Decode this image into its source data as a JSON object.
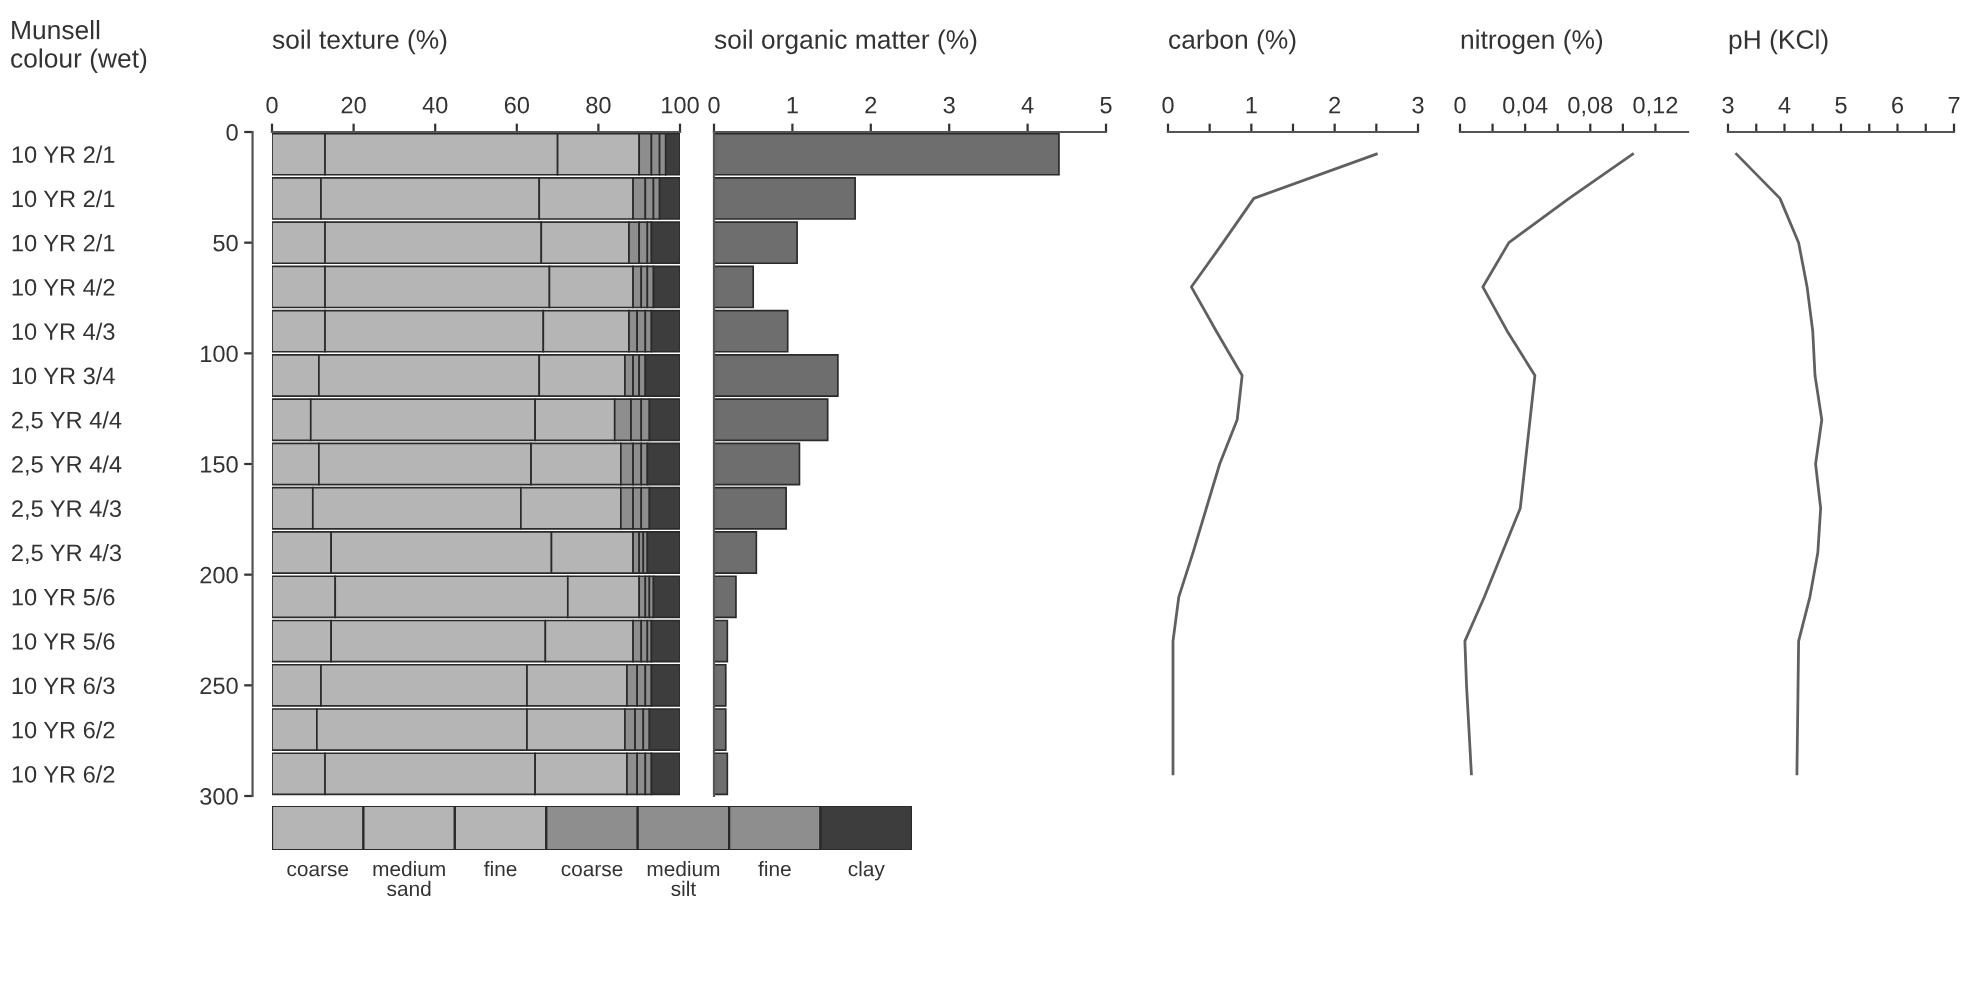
{
  "chart_data": [
    {
      "type": "bar",
      "orientation": "horizontal",
      "stacked": true,
      "title": "soil texture (%)",
      "ylabel": "Munsell colour (wet)",
      "categories": [
        "10 YR 2/1",
        "10 YR 2/1",
        "10 YR 2/1",
        "10 YR 4/2",
        "10 YR 4/3",
        "10 YR 3/4",
        "2,5 YR 4/4",
        "2,5 YR 4/4",
        "2,5 YR 4/3",
        "2,5 YR 4/3",
        "10 YR 5/6",
        "10 YR 5/6",
        "10 YR 6/3",
        "10 YR 6/2",
        "10 YR 6/2"
      ],
      "series": [
        {
          "name": "coarse",
          "color": "#b5b5b5",
          "values": [
            13,
            12,
            13,
            13,
            13,
            11.5,
            9.5,
            11.5,
            10,
            14.5,
            15.5,
            14.5,
            12,
            11,
            13
          ]
        },
        {
          "name": "medium",
          "color": "#b5b5b5",
          "values": [
            57,
            53.5,
            53,
            55,
            53.5,
            54,
            55,
            52,
            51,
            54,
            57,
            52.5,
            50.5,
            51.5,
            51.5
          ]
        },
        {
          "name": "fine",
          "color": "#b5b5b5",
          "values": [
            20,
            23,
            21.5,
            20.5,
            21,
            21,
            19.5,
            22,
            24.5,
            20,
            17.5,
            21.5,
            24.5,
            24,
            22.5
          ]
        },
        {
          "name": "coarse",
          "color": "#8e8e8e",
          "values": [
            3,
            3,
            2.5,
            2,
            2,
            2,
            4,
            3,
            3,
            1.5,
            1.5,
            2,
            2.5,
            2.5,
            2.5
          ]
        },
        {
          "name": "medium",
          "color": "#8e8e8e",
          "values": [
            2,
            2,
            2,
            1.5,
            2,
            1.5,
            2.5,
            2,
            2,
            1,
            1,
            1.5,
            2,
            2,
            2
          ]
        },
        {
          "name": "fine",
          "color": "#8e8e8e",
          "values": [
            1.5,
            1.5,
            1,
            1.5,
            1.5,
            1.5,
            2,
            1.5,
            2,
            1,
            1,
            1,
            1.5,
            1.5,
            1.5
          ]
        },
        {
          "name": "clay",
          "color": "#3d3d3d",
          "values": [
            3.5,
            5,
            7,
            6.5,
            7,
            8.5,
            7.5,
            8,
            7.5,
            8,
            6.5,
            7,
            7,
            7.5,
            7
          ]
        }
      ],
      "xlim": [
        0,
        100
      ],
      "xticks": [
        0,
        20,
        40,
        60,
        80,
        100
      ],
      "y2lim": [
        300,
        0
      ],
      "y2ticks": [
        0,
        50,
        100,
        150,
        200,
        250,
        300
      ],
      "legend": "bottom",
      "annotations": [
        "sand",
        "silt"
      ]
    },
    {
      "type": "bar",
      "orientation": "horizontal",
      "title": "soil organic matter (%)",
      "categories": [
        null,
        null,
        null,
        null,
        null,
        null,
        null,
        null,
        null,
        null,
        null,
        null,
        null,
        null,
        null
      ],
      "values": [
        4.4,
        1.8,
        1.06,
        0.5,
        0.94,
        1.58,
        1.45,
        1.09,
        0.92,
        0.54,
        0.28,
        0.17,
        0.15,
        0.15,
        0.17
      ],
      "color": "#6e6e6e",
      "xlim": [
        0,
        5
      ],
      "xticks": [
        0,
        1,
        2,
        3,
        4,
        5
      ],
      "tick_labels": "x"
    },
    {
      "type": "line",
      "orientation": "horizontal",
      "title": "carbon (%)",
      "categories": [
        null,
        null,
        null,
        null,
        null,
        null,
        null,
        null,
        null,
        null,
        null,
        null,
        null,
        null,
        null
      ],
      "series": [
        {
          "color": "#606060",
          "values": [
            2.5,
            1.03,
            0.66,
            0.28,
            0.58,
            0.89,
            0.83,
            0.62,
            0.46,
            0.3,
            0.13,
            0.06,
            0.06,
            0.06,
            0.06
          ]
        }
      ],
      "xlim": [
        0,
        3
      ],
      "xticks": [
        {
          "value": 0,
          "label": "0"
        },
        {
          "value": 0.5,
          "label": null
        },
        {
          "value": 1,
          "label": "1"
        },
        {
          "value": 1.5,
          "label": null
        },
        {
          "value": 2,
          "label": "2"
        },
        {
          "value": 2.5,
          "label": null
        },
        {
          "value": 3,
          "label": "3"
        }
      ],
      "tick_labels": "x"
    },
    {
      "type": "line",
      "orientation": "horizontal",
      "title": "nitrogen (%)",
      "categories": [
        null,
        null,
        null,
        null,
        null,
        null,
        null,
        null,
        null,
        null,
        null,
        null,
        null,
        null,
        null
      ],
      "series": [
        {
          "color": "#606060",
          "values": [
            0.106,
            0.067,
            0.03,
            0.014,
            0.029,
            0.046,
            0.043,
            0.04,
            0.037,
            0.026,
            0.015,
            0.003,
            0.004,
            0.0055,
            0.007
          ]
        }
      ],
      "xlim": [
        0,
        0.14
      ],
      "xticks": [
        {
          "value": 0,
          "label": "0"
        },
        {
          "value": 0.02,
          "label": null
        },
        {
          "value": 0.04,
          "label": "0,04"
        },
        {
          "value": 0.06,
          "label": null
        },
        {
          "value": 0.08,
          "label": "0,08"
        },
        {
          "value": 0.1,
          "label": null
        },
        {
          "value": 0.12,
          "label": "0,12"
        }
      ],
      "tick_labels": "x"
    },
    {
      "type": "line",
      "orientation": "horizontal",
      "title": "pH (KCl)",
      "categories": [
        null,
        null,
        null,
        null,
        null,
        null,
        null,
        null,
        null,
        null,
        null,
        null,
        null,
        null,
        null
      ],
      "series": [
        {
          "color": "#606060",
          "values": [
            3.15,
            3.92,
            4.25,
            4.4,
            4.5,
            4.54,
            4.66,
            4.55,
            4.64,
            4.59,
            4.45,
            4.25,
            4.24,
            4.23,
            4.22
          ]
        }
      ],
      "xlim": [
        3,
        7
      ],
      "xticks": [
        {
          "value": 3,
          "label": "3"
        },
        {
          "value": 3.5,
          "label": null
        },
        {
          "value": 4,
          "label": "4"
        },
        {
          "value": 4.5,
          "label": null
        },
        {
          "value": 5,
          "label": "5"
        },
        {
          "value": 5.5,
          "label": null
        },
        {
          "value": 6,
          "label": "6"
        },
        {
          "value": 6.5,
          "label": null
        },
        {
          "value": 7,
          "label": "7"
        }
      ],
      "tick_labels": "x"
    }
  ]
}
